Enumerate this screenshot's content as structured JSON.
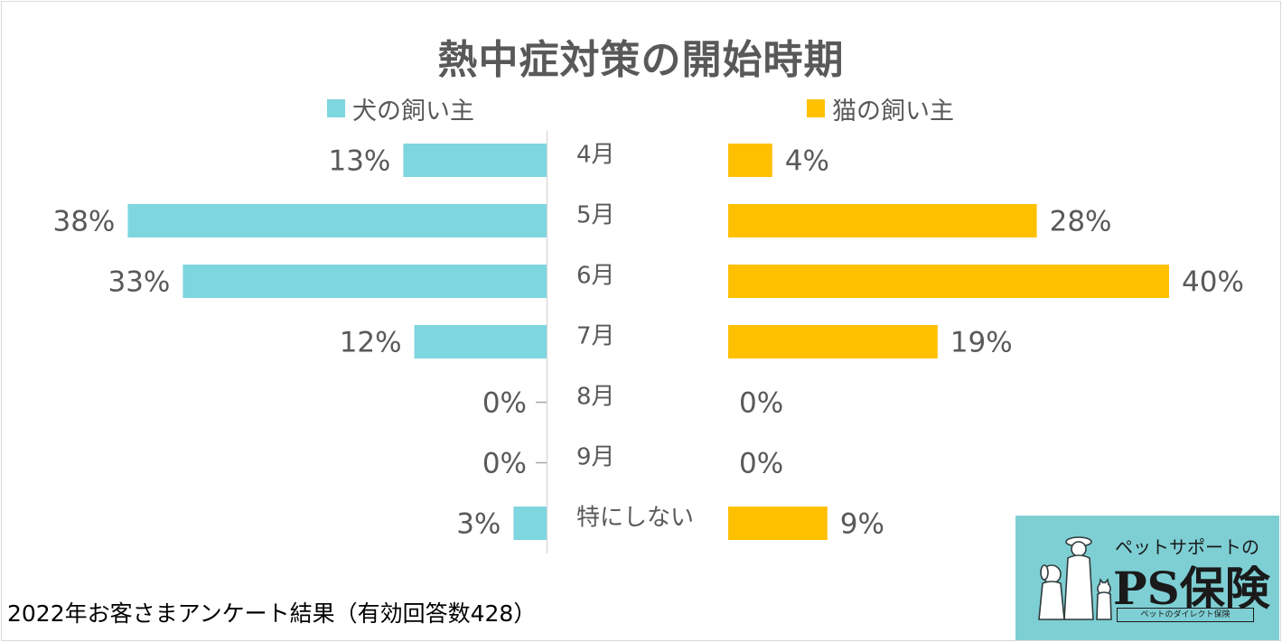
{
  "colors": {
    "dog": "#7ed6df",
    "cat": "#ffc000",
    "text": "#595959"
  },
  "logo": {
    "tagline": "ペットサポートの",
    "brand": "PS保険",
    "subline": "ペットのダイレクト保険"
  },
  "footnote": "2022年お客さまアンケート結果（有効回答数428）",
  "chart_data": {
    "type": "bar",
    "title": "熱中症対策の開始時期",
    "categories": [
      "4月",
      "5月",
      "6月",
      "7月",
      "8月",
      "9月",
      "特にしない"
    ],
    "series": [
      {
        "name": "犬の飼い主",
        "values": [
          13,
          38,
          33,
          12,
          0,
          0,
          3
        ]
      },
      {
        "name": "猫の飼い主",
        "values": [
          4,
          28,
          40,
          19,
          0,
          0,
          9
        ]
      }
    ],
    "value_suffix": "%",
    "xlim": [
      0,
      40
    ],
    "layout": "butterfly",
    "legend": "top",
    "grid": false
  }
}
